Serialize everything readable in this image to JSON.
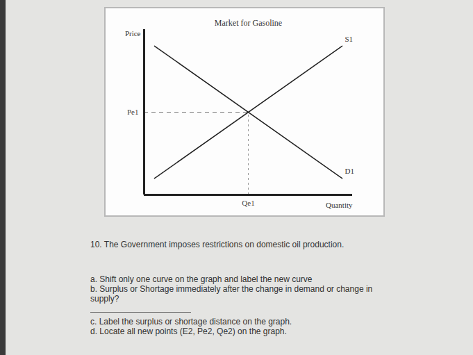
{
  "chart_data": {
    "type": "line",
    "title": "Market for Gasoline",
    "x_label": "Quantity",
    "y_label": "Price",
    "x": [
      0.5,
      9.5
    ],
    "series": [
      {
        "name": "S1",
        "color": "#222222",
        "values": [
          1,
          9
        ]
      },
      {
        "name": "D1",
        "color": "#222222",
        "values": [
          9,
          1
        ]
      }
    ],
    "xlim": [
      0,
      10
    ],
    "ylim": [
      0,
      10
    ],
    "xticks": [
      {
        "value": 5,
        "label": "Qe1"
      }
    ],
    "yticks": [
      {
        "value": 5,
        "label": "Pe1"
      }
    ],
    "grid": false
  },
  "document": {
    "question": "10. The Government imposes restrictions on domestic oil production.",
    "items": [
      "a. Shift only one curve on the graph and label the new curve",
      "b. Surplus or Shortage immediately after the change in demand or change in supply?",
      "c. Label the surplus or shortage distance on the graph.",
      "d. Locate all new points (E2, Pe2, Qe2) on the graph."
    ]
  }
}
